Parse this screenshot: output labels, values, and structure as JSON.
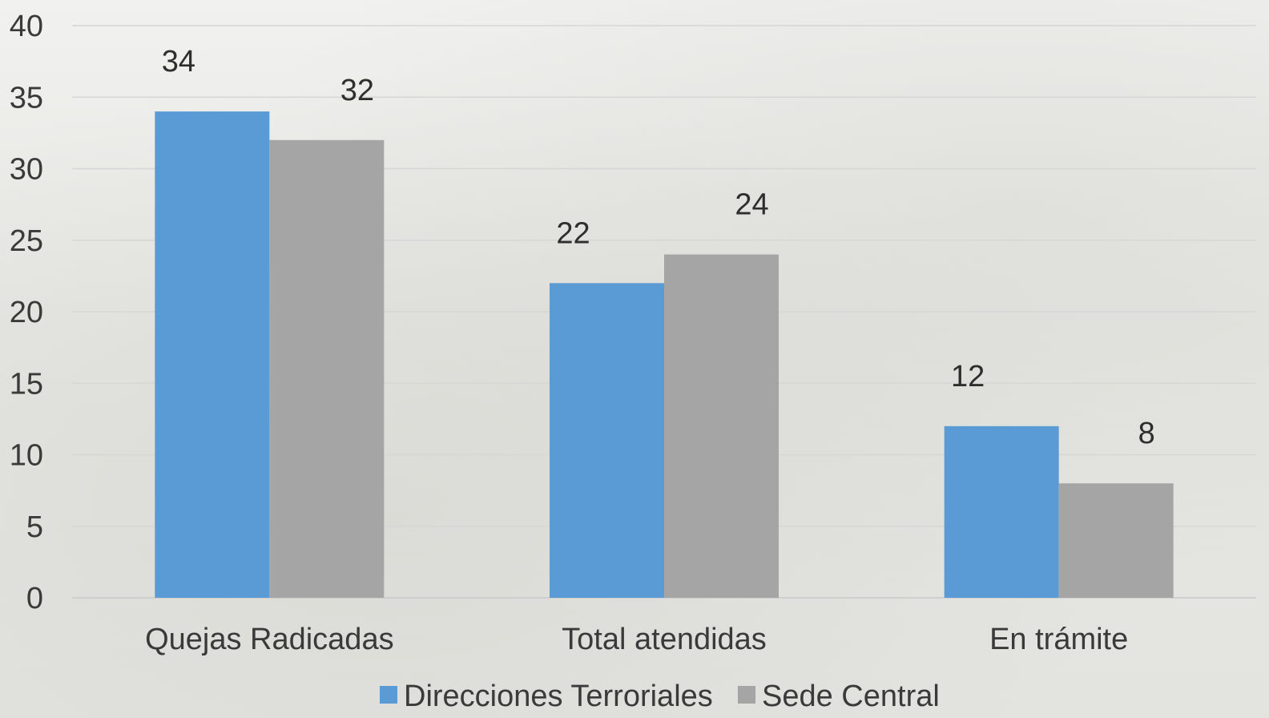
{
  "chart_data": {
    "type": "bar",
    "categories": [
      "Quejas Radicadas",
      "Total atendidas",
      "En trámite"
    ],
    "series": [
      {
        "name": "Direcciones Terroriales",
        "values": [
          34,
          22,
          12
        ],
        "color": "#5b9bd5"
      },
      {
        "name": "Sede Central",
        "values": [
          32,
          24,
          8
        ],
        "color": "#a5a5a5"
      }
    ],
    "ylim": [
      0,
      40
    ],
    "yticks": [
      0,
      5,
      10,
      15,
      20,
      25,
      30,
      35,
      40
    ],
    "grid": true,
    "legend_position": "bottom"
  }
}
